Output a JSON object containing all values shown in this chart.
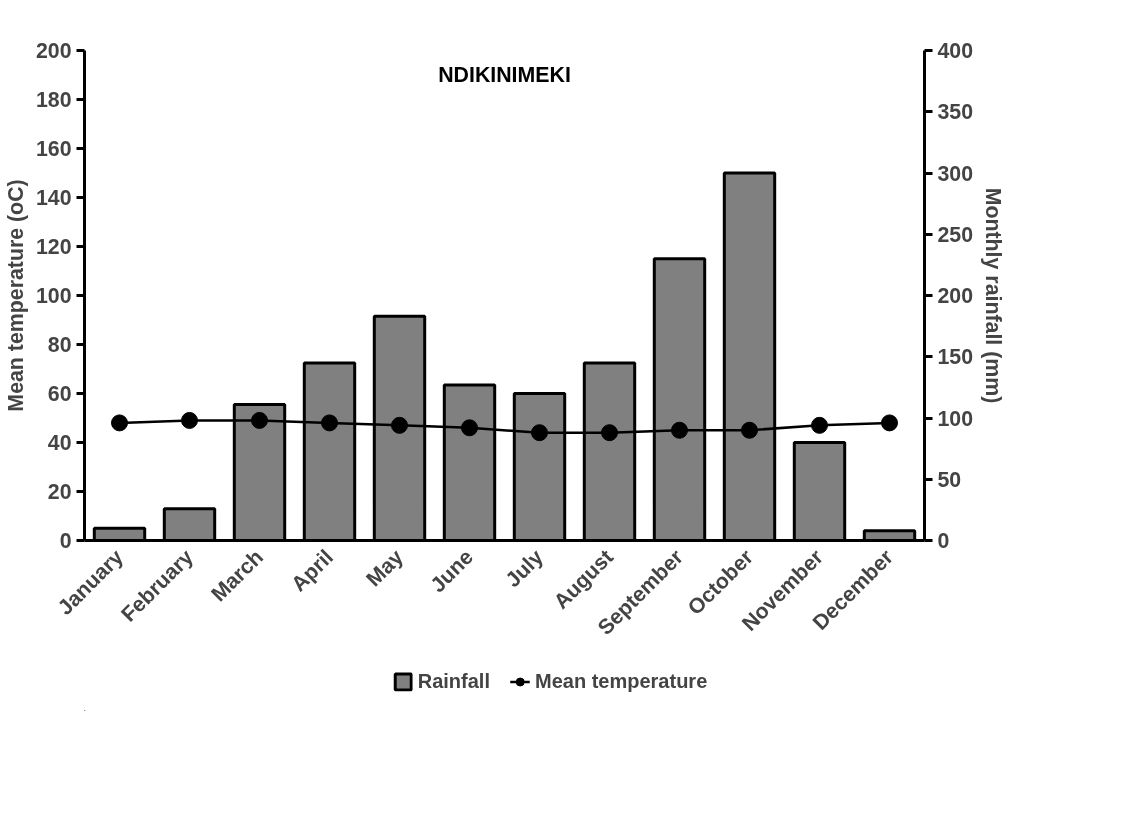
{
  "chart_data": {
    "type": "bar",
    "title": "NDIKINIMEKI",
    "ylabel": "Mean temperature (oC)",
    "y2label": "Monthly rainfall (mm)",
    "categories": [
      "January",
      "February",
      "March",
      "April",
      "May",
      "June",
      "July",
      "August",
      "September",
      "October",
      "November",
      "December"
    ],
    "series": [
      {
        "name": "Rainfall",
        "axis": "y2",
        "color": "#808080",
        "values": [
          10,
          26,
          111,
          145,
          183,
          127,
          120,
          145,
          230,
          300,
          80,
          8
        ]
      },
      {
        "name": "Mean temperature",
        "type": "line",
        "axis": "y",
        "color": "#000000",
        "marker": "circle",
        "values": [
          48,
          49,
          49,
          48,
          47,
          46,
          44,
          44,
          45,
          45,
          47,
          48
        ]
      }
    ],
    "ylim": [
      0,
      200
    ],
    "yticks": [
      0,
      20,
      40,
      60,
      80,
      100,
      120,
      140,
      160,
      180,
      200
    ],
    "y2lim": [
      0,
      400
    ],
    "y2ticks": [
      0,
      50,
      100,
      150,
      200,
      250,
      300,
      350,
      400
    ],
    "grid": false,
    "legend": "bottom"
  }
}
